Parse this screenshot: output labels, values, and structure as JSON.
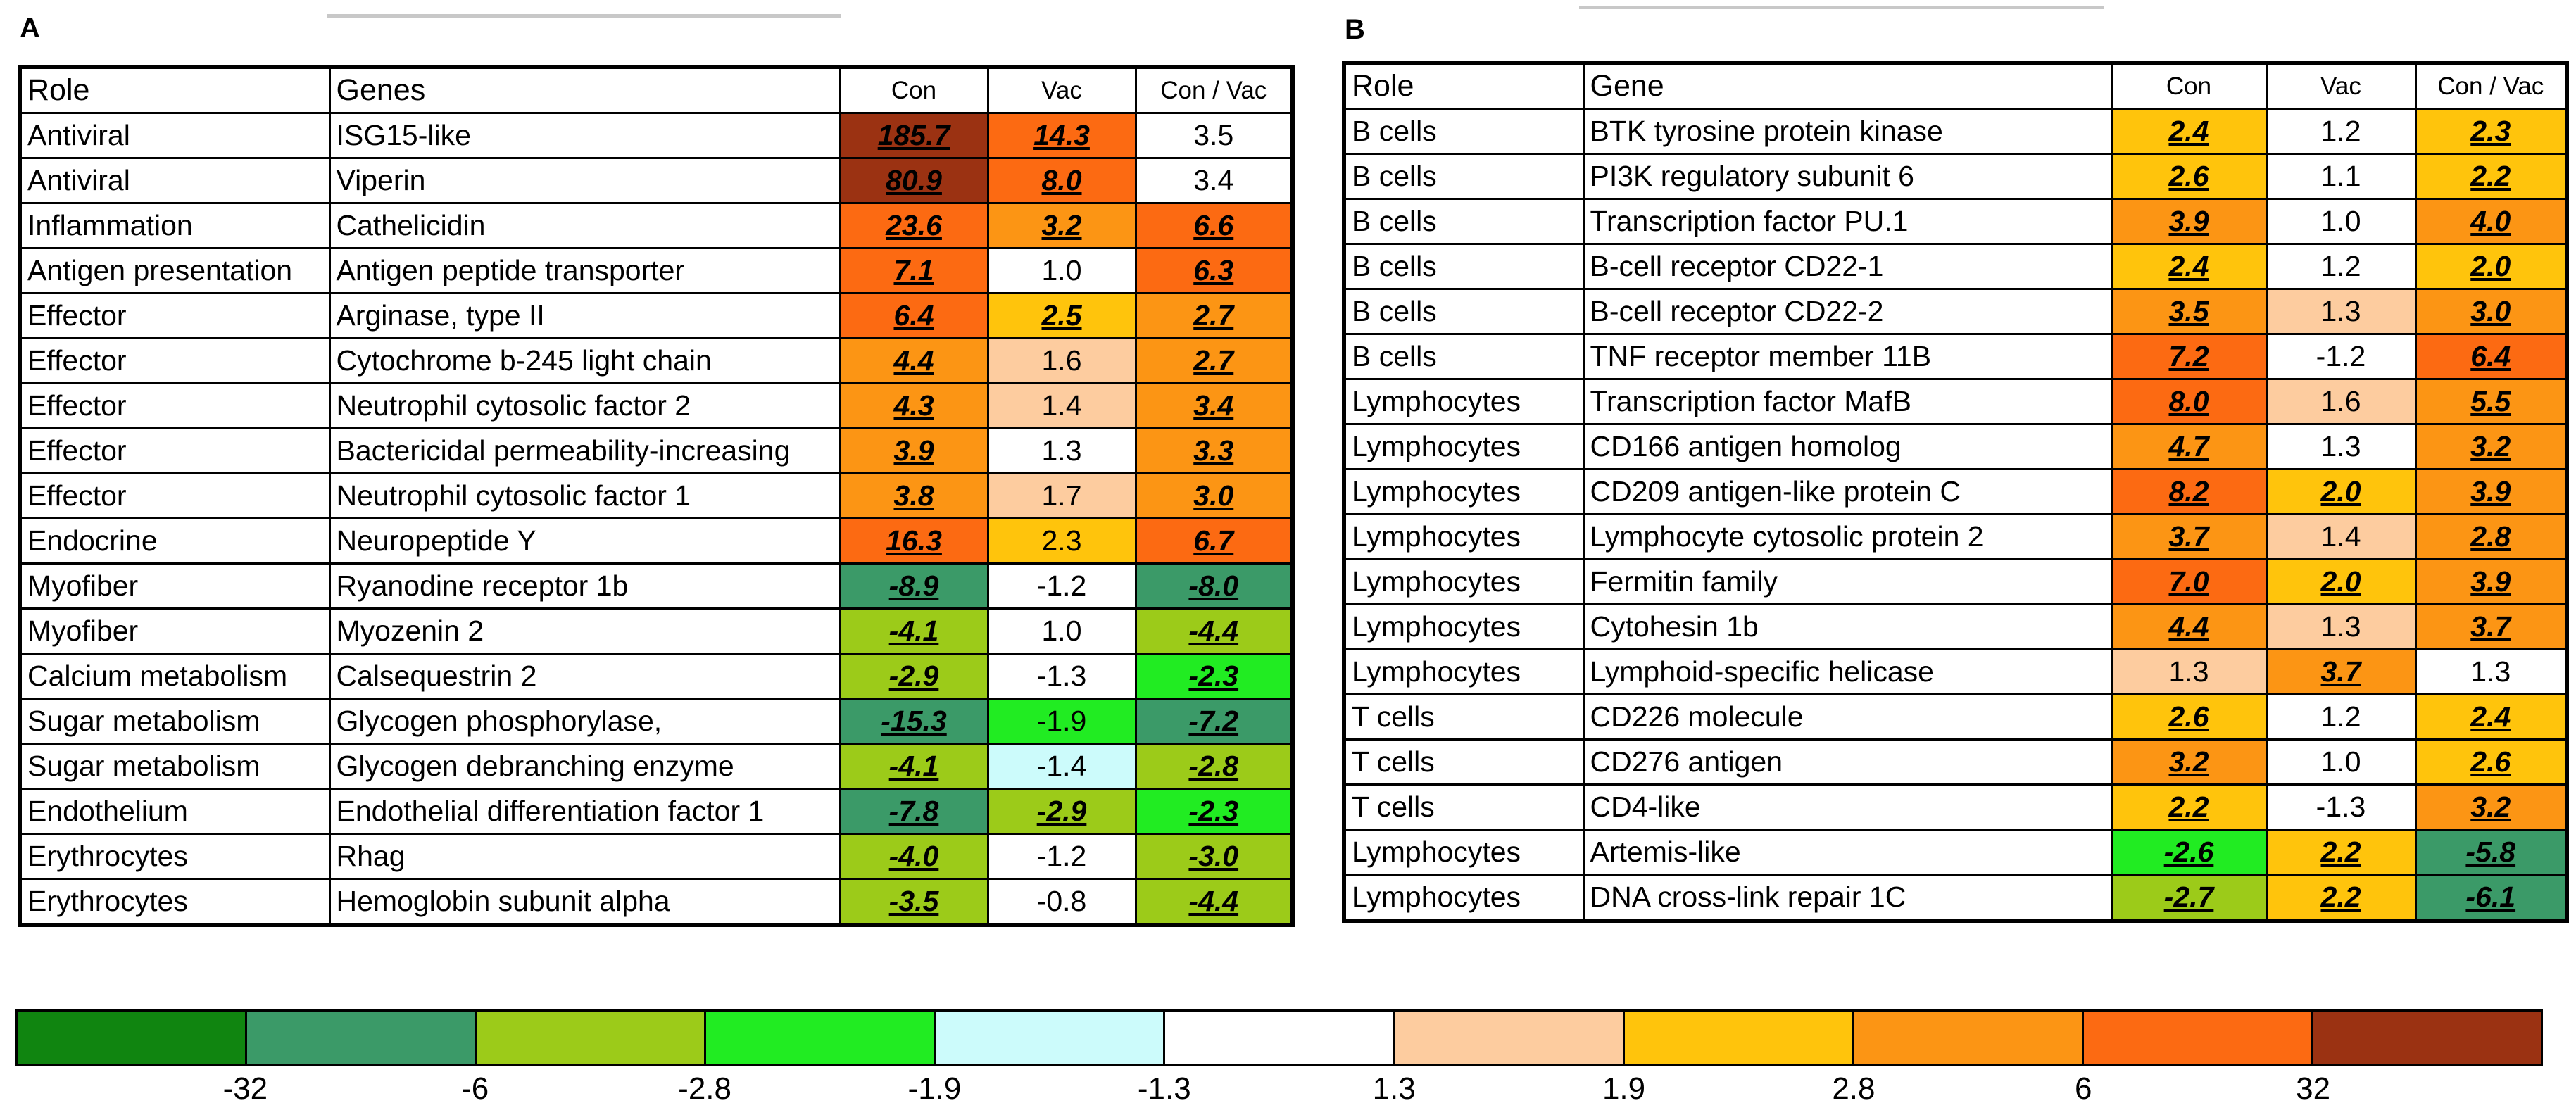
{
  "panelA": {
    "label": "A",
    "headers": [
      "Role",
      "Genes",
      "Con",
      "Vac",
      "Con / Vac"
    ],
    "rows": [
      {
        "role": "Antiviral",
        "gene": "ISG15-like",
        "vals": [
          {
            "v": "185.7",
            "c": "#9b3212",
            "h": true
          },
          {
            "v": "14.3",
            "c": "#fc6a12",
            "h": true
          },
          {
            "v": "3.5",
            "c": "#ffffff",
            "h": false
          }
        ]
      },
      {
        "role": "Antiviral",
        "gene": "Viperin",
        "vals": [
          {
            "v": "80.9",
            "c": "#9b3212",
            "h": true
          },
          {
            "v": "8.0",
            "c": "#fc6a12",
            "h": true
          },
          {
            "v": "3.4",
            "c": "#ffffff",
            "h": false
          }
        ]
      },
      {
        "role": "Inflammation",
        "gene": "Cathelicidin",
        "vals": [
          {
            "v": "23.6",
            "c": "#fc6a12",
            "h": true
          },
          {
            "v": "3.2",
            "c": "#fc9514",
            "h": true
          },
          {
            "v": "6.6",
            "c": "#fc6a12",
            "h": true
          }
        ]
      },
      {
        "role": "Antigen presentation",
        "gene": "Antigen peptide transporter",
        "vals": [
          {
            "v": "7.1",
            "c": "#fc6a12",
            "h": true
          },
          {
            "v": "1.0",
            "c": "#ffffff",
            "h": false
          },
          {
            "v": "6.3",
            "c": "#fc6a12",
            "h": true
          }
        ]
      },
      {
        "role": "Effector",
        "gene": "Arginase, type II",
        "vals": [
          {
            "v": "6.4",
            "c": "#fc6a12",
            "h": true
          },
          {
            "v": "2.5",
            "c": "#ffc40c",
            "h": true
          },
          {
            "v": "2.7",
            "c": "#fc9514",
            "h": true
          }
        ]
      },
      {
        "role": "Effector",
        "gene": "Cytochrome b-245 light chain",
        "vals": [
          {
            "v": "4.4",
            "c": "#fc9514",
            "h": true
          },
          {
            "v": "1.6",
            "c": "#fdcc9f",
            "h": false
          },
          {
            "v": "2.7",
            "c": "#fc9514",
            "h": true
          }
        ]
      },
      {
        "role": "Effector",
        "gene": "Neutrophil cytosolic factor 2",
        "vals": [
          {
            "v": "4.3",
            "c": "#fc9514",
            "h": true
          },
          {
            "v": "1.4",
            "c": "#fdcc9f",
            "h": false
          },
          {
            "v": "3.4",
            "c": "#fc9514",
            "h": true
          }
        ]
      },
      {
        "role": "Effector",
        "gene": "Bactericidal permeability-increasing",
        "vals": [
          {
            "v": "3.9",
            "c": "#fc9514",
            "h": true
          },
          {
            "v": "1.3",
            "c": "#ffffff",
            "h": false
          },
          {
            "v": "3.3",
            "c": "#fc9514",
            "h": true
          }
        ]
      },
      {
        "role": "Effector",
        "gene": "Neutrophil cytosolic factor 1",
        "vals": [
          {
            "v": "3.8",
            "c": "#fc9514",
            "h": true
          },
          {
            "v": "1.7",
            "c": "#fdcc9f",
            "h": false
          },
          {
            "v": "3.0",
            "c": "#fc9514",
            "h": true
          }
        ]
      },
      {
        "role": "Endocrine",
        "gene": "Neuropeptide Y",
        "vals": [
          {
            "v": "16.3",
            "c": "#fc6a12",
            "h": true
          },
          {
            "v": "2.3",
            "c": "#ffc40c",
            "h": false
          },
          {
            "v": "6.7",
            "c": "#fc6a12",
            "h": true
          }
        ]
      },
      {
        "role": "Myofiber",
        "gene": "Ryanodine receptor 1b",
        "vals": [
          {
            "v": "-8.9",
            "c": "#3b9a68",
            "h": true
          },
          {
            "v": "-1.2",
            "c": "#ffffff",
            "h": false
          },
          {
            "v": "-8.0",
            "c": "#3b9a68",
            "h": true
          }
        ]
      },
      {
        "role": "Myofiber",
        "gene": "Myozenin 2",
        "vals": [
          {
            "v": "-4.1",
            "c": "#9ccb19",
            "h": true
          },
          {
            "v": "1.0",
            "c": "#ffffff",
            "h": false
          },
          {
            "v": "-4.4",
            "c": "#9ccb19",
            "h": true
          }
        ]
      },
      {
        "role": "Calcium metabolism",
        "gene": "Calsequestrin 2",
        "vals": [
          {
            "v": "-2.9",
            "c": "#9ccb19",
            "h": true
          },
          {
            "v": "-1.3",
            "c": "#ffffff",
            "h": false
          },
          {
            "v": "-2.3",
            "c": "#21ec22",
            "h": true
          }
        ]
      },
      {
        "role": "Sugar metabolism",
        "gene": "Glycogen phosphorylase,",
        "vals": [
          {
            "v": "-15.3",
            "c": "#3b9a68",
            "h": true
          },
          {
            "v": "-1.9",
            "c": "#21ec22",
            "h": false
          },
          {
            "v": "-7.2",
            "c": "#3b9a68",
            "h": true
          }
        ]
      },
      {
        "role": "Sugar metabolism",
        "gene": "Glycogen debranching enzyme",
        "vals": [
          {
            "v": "-4.1",
            "c": "#9ccb19",
            "h": true
          },
          {
            "v": "-1.4",
            "c": "#ccfbfb",
            "h": false
          },
          {
            "v": "-2.8",
            "c": "#9ccb19",
            "h": true
          }
        ]
      },
      {
        "role": "Endothelium",
        "gene": "Endothelial differentiation factor 1",
        "vals": [
          {
            "v": "-7.8",
            "c": "#3b9a68",
            "h": true
          },
          {
            "v": "-2.9",
            "c": "#9ccb19",
            "h": true
          },
          {
            "v": "-2.3",
            "c": "#21ec22",
            "h": true
          }
        ]
      },
      {
        "role": "Erythrocytes",
        "gene": "Rhag",
        "vals": [
          {
            "v": "-4.0",
            "c": "#9ccb19",
            "h": true
          },
          {
            "v": "-1.2",
            "c": "#ffffff",
            "h": false
          },
          {
            "v": "-3.0",
            "c": "#9ccb19",
            "h": true
          }
        ]
      },
      {
        "role": "Erythrocytes",
        "gene": "Hemoglobin subunit alpha",
        "vals": [
          {
            "v": "-3.5",
            "c": "#9ccb19",
            "h": true
          },
          {
            "v": "-0.8",
            "c": "#ffffff",
            "h": false
          },
          {
            "v": "-4.4",
            "c": "#9ccb19",
            "h": true
          }
        ]
      }
    ]
  },
  "panelB": {
    "label": "B",
    "headers": [
      "Role",
      "Gene",
      "Con",
      "Vac",
      "Con / Vac"
    ],
    "rows": [
      {
        "role": "B cells",
        "gene": "BTK tyrosine protein kinase",
        "vals": [
          {
            "v": "2.4",
            "c": "#ffc40c",
            "h": true
          },
          {
            "v": "1.2",
            "c": "#ffffff",
            "h": false
          },
          {
            "v": "2.3",
            "c": "#ffc40c",
            "h": true
          }
        ]
      },
      {
        "role": "B cells",
        "gene": "PI3K regulatory subunit 6",
        "vals": [
          {
            "v": "2.6",
            "c": "#ffc40c",
            "h": true
          },
          {
            "v": "1.1",
            "c": "#ffffff",
            "h": false
          },
          {
            "v": "2.2",
            "c": "#ffc40c",
            "h": true
          }
        ]
      },
      {
        "role": "B cells",
        "gene": "Transcription factor PU.1",
        "vals": [
          {
            "v": "3.9",
            "c": "#fc9514",
            "h": true
          },
          {
            "v": "1.0",
            "c": "#ffffff",
            "h": false
          },
          {
            "v": "4.0",
            "c": "#fc9514",
            "h": true
          }
        ]
      },
      {
        "role": "B cells",
        "gene": "B-cell receptor CD22-1",
        "vals": [
          {
            "v": "2.4",
            "c": "#ffc40c",
            "h": true
          },
          {
            "v": "1.2",
            "c": "#ffffff",
            "h": false
          },
          {
            "v": "2.0",
            "c": "#ffc40c",
            "h": true
          }
        ]
      },
      {
        "role": "B cells",
        "gene": "B-cell receptor CD22-2",
        "vals": [
          {
            "v": "3.5",
            "c": "#fc9514",
            "h": true
          },
          {
            "v": "1.3",
            "c": "#fdcc9f",
            "h": false
          },
          {
            "v": "3.0",
            "c": "#fc9514",
            "h": true
          }
        ]
      },
      {
        "role": "B cells",
        "gene": "TNF receptor member 11B",
        "vals": [
          {
            "v": "7.2",
            "c": "#fc6a12",
            "h": true
          },
          {
            "v": "-1.2",
            "c": "#ffffff",
            "h": false
          },
          {
            "v": "6.4",
            "c": "#fc6a12",
            "h": true
          }
        ]
      },
      {
        "role": "Lymphocytes",
        "gene": "Transcription factor MafB",
        "vals": [
          {
            "v": "8.0",
            "c": "#fc6a12",
            "h": true
          },
          {
            "v": "1.6",
            "c": "#fdcc9f",
            "h": false
          },
          {
            "v": "5.5",
            "c": "#fc9514",
            "h": true
          }
        ]
      },
      {
        "role": "Lymphocytes",
        "gene": "CD166 antigen homolog",
        "vals": [
          {
            "v": "4.7",
            "c": "#fc9514",
            "h": true
          },
          {
            "v": "1.3",
            "c": "#ffffff",
            "h": false
          },
          {
            "v": "3.2",
            "c": "#fc9514",
            "h": true
          }
        ]
      },
      {
        "role": "Lymphocytes",
        "gene": "CD209 antigen-like protein C",
        "vals": [
          {
            "v": "8.2",
            "c": "#fc6a12",
            "h": true
          },
          {
            "v": "2.0",
            "c": "#ffc40c",
            "h": true
          },
          {
            "v": "3.9",
            "c": "#fc9514",
            "h": true
          }
        ]
      },
      {
        "role": "Lymphocytes",
        "gene": "Lymphocyte cytosolic protein 2",
        "vals": [
          {
            "v": "3.7",
            "c": "#fc9514",
            "h": true
          },
          {
            "v": "1.4",
            "c": "#fdcc9f",
            "h": false
          },
          {
            "v": "2.8",
            "c": "#fc9514",
            "h": true
          }
        ]
      },
      {
        "role": "Lymphocytes",
        "gene": "Fermitin family",
        "vals": [
          {
            "v": "7.0",
            "c": "#fc6a12",
            "h": true
          },
          {
            "v": "2.0",
            "c": "#ffc40c",
            "h": true
          },
          {
            "v": "3.9",
            "c": "#fc9514",
            "h": true
          }
        ]
      },
      {
        "role": "Lymphocytes",
        "gene": "Cytohesin 1b",
        "vals": [
          {
            "v": "4.4",
            "c": "#fc9514",
            "h": true
          },
          {
            "v": "1.3",
            "c": "#fdcc9f",
            "h": false
          },
          {
            "v": "3.7",
            "c": "#fc9514",
            "h": true
          }
        ]
      },
      {
        "role": "Lymphocytes",
        "gene": "Lymphoid-specific helicase",
        "vals": [
          {
            "v": "1.3",
            "c": "#fdcc9f",
            "h": false
          },
          {
            "v": "3.7",
            "c": "#fc9514",
            "h": true
          },
          {
            "v": "1.3",
            "c": "#ffffff",
            "h": false
          }
        ]
      },
      {
        "role": "T cells",
        "gene": "CD226 molecule",
        "vals": [
          {
            "v": "2.6",
            "c": "#ffc40c",
            "h": true
          },
          {
            "v": "1.2",
            "c": "#ffffff",
            "h": false
          },
          {
            "v": "2.4",
            "c": "#ffc40c",
            "h": true
          }
        ]
      },
      {
        "role": "T cells",
        "gene": "CD276 antigen",
        "vals": [
          {
            "v": "3.2",
            "c": "#fc9514",
            "h": true
          },
          {
            "v": "1.0",
            "c": "#ffffff",
            "h": false
          },
          {
            "v": "2.6",
            "c": "#ffc40c",
            "h": true
          }
        ]
      },
      {
        "role": "T cells",
        "gene": "CD4-like",
        "vals": [
          {
            "v": "2.2",
            "c": "#ffc40c",
            "h": true
          },
          {
            "v": "-1.3",
            "c": "#ffffff",
            "h": false
          },
          {
            "v": "3.2",
            "c": "#fc9514",
            "h": true
          }
        ]
      },
      {
        "role": "Lymphocytes",
        "gene": "Artemis-like",
        "vals": [
          {
            "v": "-2.6",
            "c": "#21ec22",
            "h": true
          },
          {
            "v": "2.2",
            "c": "#ffc40c",
            "h": true
          },
          {
            "v": "-5.8",
            "c": "#3b9a68",
            "h": true
          }
        ]
      },
      {
        "role": "Lymphocytes",
        "gene": "DNA cross-link repair 1C",
        "vals": [
          {
            "v": "-2.7",
            "c": "#9ccb19",
            "h": true
          },
          {
            "v": "2.2",
            "c": "#ffc40c",
            "h": true
          },
          {
            "v": "-6.1",
            "c": "#3b9a68",
            "h": true
          }
        ]
      }
    ]
  },
  "legend": {
    "colors": [
      "#108510",
      "#3b9a68",
      "#9ccb19",
      "#21ec22",
      "#ccfbfb",
      "#ffffff",
      "#fdcc9f",
      "#ffc40c",
      "#fc9514",
      "#fc6a12",
      "#9b3212"
    ],
    "ticks": [
      "-32",
      "-6",
      "-2.8",
      "-1.9",
      "-1.3",
      "1.3",
      "1.9",
      "2.8",
      "6",
      "32"
    ]
  }
}
